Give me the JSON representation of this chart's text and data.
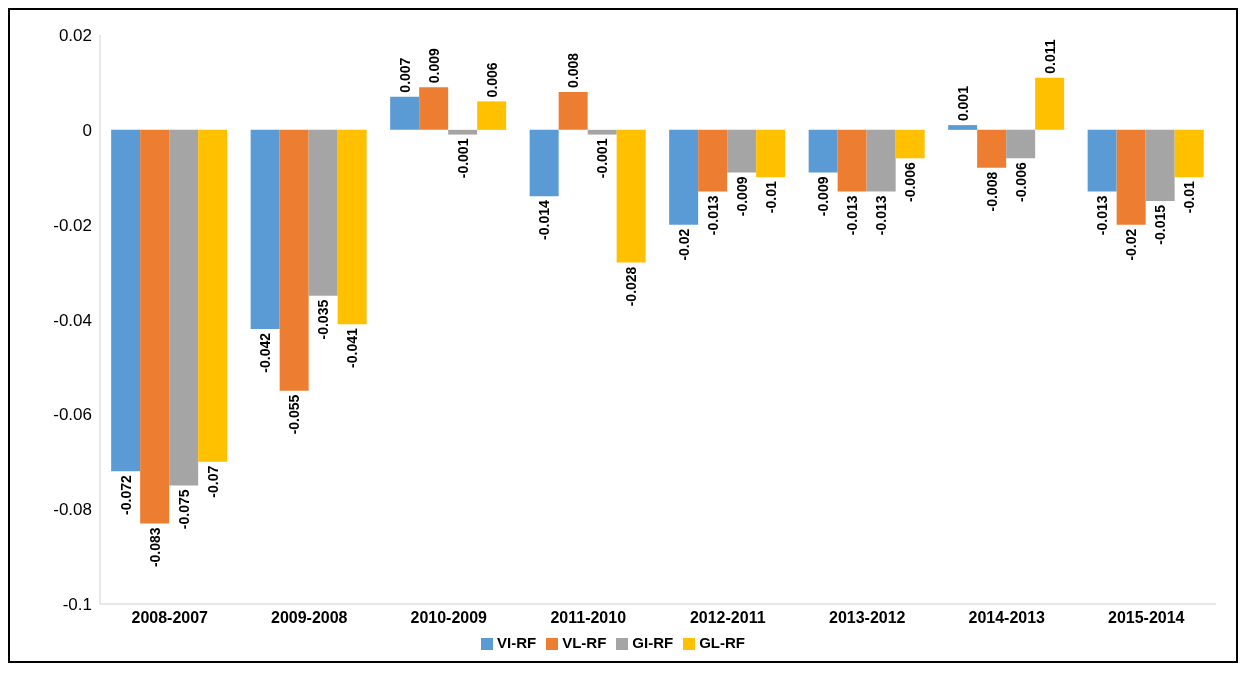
{
  "chart_data": {
    "type": "bar",
    "categories": [
      "2008-2007",
      "2009-2008",
      "2010-2009",
      "2011-2010",
      "2012-2011",
      "2013-2012",
      "2014-2013",
      "2015-2014"
    ],
    "series": [
      {
        "name": "VI-RF",
        "color": "#5b9bd5",
        "values": [
          -0.072,
          -0.042,
          0.007,
          -0.014,
          -0.02,
          -0.009,
          0.001,
          -0.013
        ]
      },
      {
        "name": "VL-RF",
        "color": "#ed7d31",
        "values": [
          -0.083,
          -0.055,
          0.009,
          0.008,
          -0.013,
          -0.013,
          -0.008,
          -0.02
        ]
      },
      {
        "name": "GI-RF",
        "color": "#a5a5a5",
        "values": [
          -0.075,
          -0.035,
          -0.001,
          -0.001,
          -0.009,
          -0.013,
          -0.006,
          -0.015
        ]
      },
      {
        "name": "GL-RF",
        "color": "#ffc000",
        "values": [
          -0.07,
          -0.041,
          0.006,
          -0.028,
          -0.01,
          -0.006,
          0.011,
          -0.01
        ]
      }
    ],
    "ylim": [
      -0.1,
      0.02
    ],
    "yticks": [
      -0.1,
      -0.08,
      -0.06,
      -0.04,
      -0.02,
      0,
      0.02
    ],
    "data_labels": true,
    "legend": "bottom"
  }
}
